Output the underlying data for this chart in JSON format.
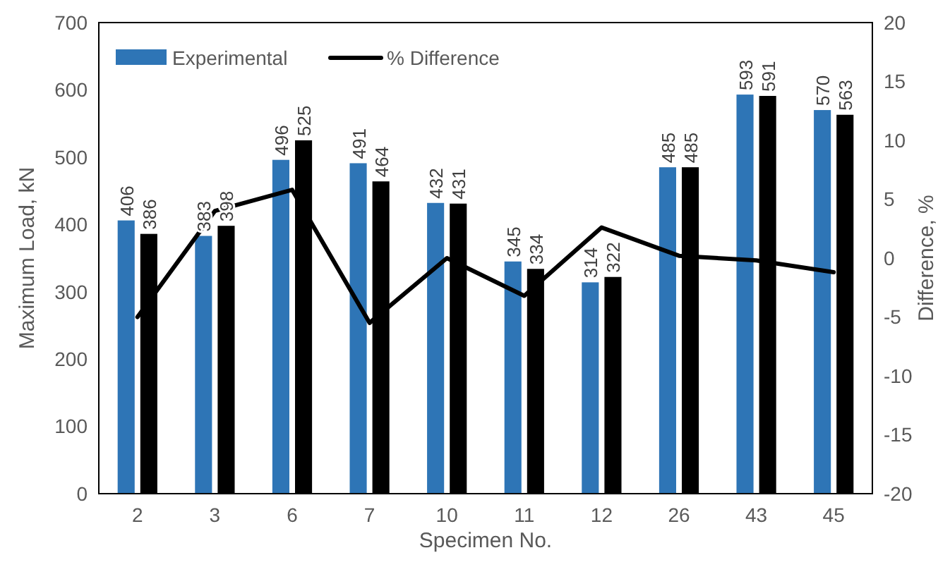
{
  "chart_data": {
    "type": "bar",
    "xlabel": "Specimen No.",
    "ylabel": "Maximum Load, kN",
    "y2label": "Difference, %",
    "categories": [
      "2",
      "3",
      "6",
      "7",
      "10",
      "11",
      "12",
      "26",
      "43",
      "45"
    ],
    "series": [
      {
        "name": "Experimental",
        "color": "#2e75b6",
        "values": [
          406,
          383,
          496,
          491,
          432,
          345,
          314,
          485,
          593,
          570
        ],
        "value_labels": [
          "406",
          "383",
          "496",
          "491",
          "432",
          "345",
          "314",
          "485",
          "593",
          "570"
        ]
      },
      {
        "color": "#000000",
        "values": [
          386,
          398,
          525,
          464,
          431,
          334,
          322,
          485,
          591,
          563
        ],
        "value_labels": [
          "386",
          "398",
          "525",
          "464",
          "431",
          "334",
          "322",
          "485",
          "591",
          "563"
        ]
      },
      {
        "name": "% Difference",
        "type": "line",
        "axis": "y2",
        "color": "#000000",
        "values": [
          -5,
          4,
          5.8,
          -5.5,
          0,
          -3.2,
          2.6,
          0.2,
          -0.2,
          -1.2
        ]
      }
    ],
    "ylim": [
      0,
      700
    ],
    "yticks": [
      0,
      100,
      200,
      300,
      400,
      500,
      600,
      700
    ],
    "y2lim": [
      -20,
      20
    ],
    "y2ticks": [
      -20,
      -15,
      -10,
      -5,
      0,
      5,
      10,
      15,
      20
    ],
    "legend": "top left",
    "grid": false,
    "marker": "none",
    "line_style": "solid"
  }
}
